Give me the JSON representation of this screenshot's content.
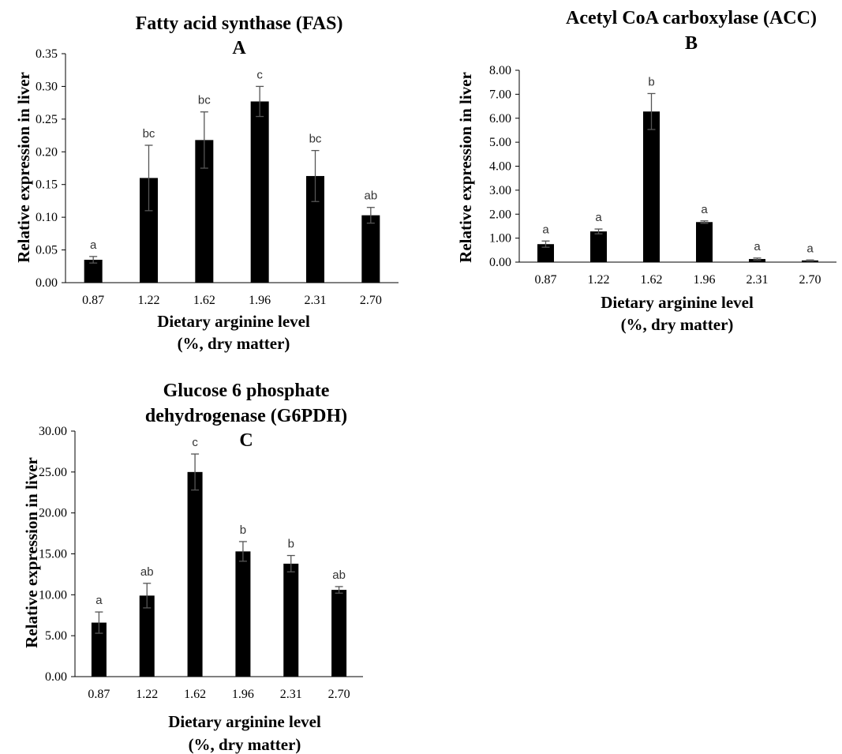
{
  "chart_data": [
    {
      "id": "A",
      "type": "bar",
      "title": "Fatty acid synthase (FAS)",
      "panel": "A",
      "xlabel": [
        "Dietary arginine level",
        "(%, dry matter)"
      ],
      "ylabel": "Relative  expression in liver",
      "categories": [
        "0.87",
        "1.22",
        "1.62",
        "1.96",
        "2.31",
        "2.70"
      ],
      "values": [
        0.035,
        0.16,
        0.218,
        0.277,
        0.163,
        0.103
      ],
      "errors": [
        0.005,
        0.05,
        0.043,
        0.023,
        0.039,
        0.012
      ],
      "letters": [
        "a",
        "bc",
        "bc",
        "c",
        "bc",
        "ab"
      ],
      "ylim": [
        0,
        0.35
      ],
      "yticks": [
        "0.00",
        "0.05",
        "0.10",
        "0.15",
        "0.20",
        "0.25",
        "0.30",
        "0.35"
      ],
      "bar_color": "#000000",
      "grid": false
    },
    {
      "id": "B",
      "type": "bar",
      "title": "Acetyl CoA carboxylase (ACC)",
      "panel": "B",
      "xlabel": [
        "Dietary arginine level",
        "(%, dry matter)"
      ],
      "ylabel": "Relative  expression  in liver",
      "categories": [
        "0.87",
        "1.22",
        "1.62",
        "1.96",
        "2.31",
        "2.70"
      ],
      "values": [
        0.75,
        1.28,
        6.28,
        1.67,
        0.13,
        0.07
      ],
      "errors": [
        0.13,
        0.1,
        0.75,
        0.05,
        0.04,
        0.02
      ],
      "letters": [
        "a",
        "a",
        "b",
        "a",
        "a",
        "a"
      ],
      "ylim": [
        0,
        8
      ],
      "yticks": [
        "0.00",
        "1.00",
        "2.00",
        "3.00",
        "4.00",
        "5.00",
        "6.00",
        "7.00",
        "8.00"
      ],
      "bar_color": "#000000",
      "grid": false
    },
    {
      "id": "C",
      "type": "bar",
      "title": "Glucose 6 phosphate dehydrogenase (G6PDH)",
      "title_lines": [
        "Glucose 6 phosphate",
        "dehydrogenase (G6PDH)"
      ],
      "panel": "C",
      "xlabel": [
        "Dietary arginine level",
        "(%, dry matter)"
      ],
      "ylabel": "Relative  expression in liver",
      "categories": [
        "0.87",
        "1.22",
        "1.62",
        "1.96",
        "2.31",
        "2.70"
      ],
      "values": [
        6.6,
        9.9,
        25.0,
        15.3,
        13.8,
        10.6
      ],
      "errors": [
        1.3,
        1.5,
        2.2,
        1.2,
        1.0,
        0.4
      ],
      "letters": [
        "a",
        "ab",
        "c",
        "b",
        "b",
        "ab"
      ],
      "ylim": [
        0,
        30
      ],
      "yticks": [
        "0.00",
        "5.00",
        "10.00",
        "15.00",
        "20.00",
        "25.00",
        "30.00"
      ],
      "bar_color": "#000000",
      "grid": false
    }
  ]
}
